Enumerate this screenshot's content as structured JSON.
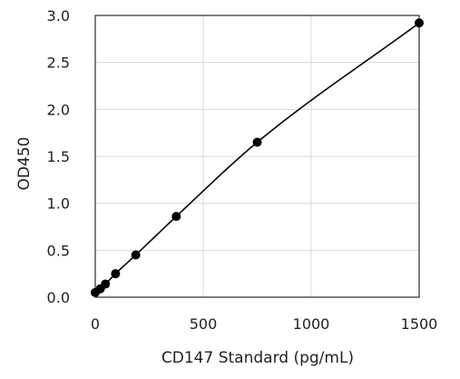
{
  "chart_data": {
    "type": "scatter",
    "title": "",
    "xlabel": "CD147 Standard (pg/mL)",
    "ylabel": "OD450",
    "xlim": [
      0,
      1500
    ],
    "ylim": [
      0,
      3.0
    ],
    "x_ticks": [
      0,
      500,
      1000,
      1500
    ],
    "x_tick_labels": [
      "0",
      "500",
      "1000",
      "1500"
    ],
    "y_ticks": [
      0,
      0.5,
      1.0,
      1.5,
      2.0,
      2.5,
      3.0
    ],
    "y_tick_labels": [
      "0.0",
      "0.5",
      "1.0",
      "1.5",
      "2.0",
      "2.5",
      "3.0"
    ],
    "grid": true,
    "legend": "none",
    "fit_line": true,
    "series": [
      {
        "x": [
          0,
          23.4,
          46.9,
          93.8,
          187.5,
          375,
          750,
          1500
        ],
        "y": [
          0.05,
          0.09,
          0.14,
          0.25,
          0.45,
          0.86,
          1.65,
          2.92
        ]
      }
    ],
    "colors": {
      "marker": "#000000",
      "line": "#000000",
      "grid": "#d9d9d9",
      "axis": "#000000"
    }
  }
}
